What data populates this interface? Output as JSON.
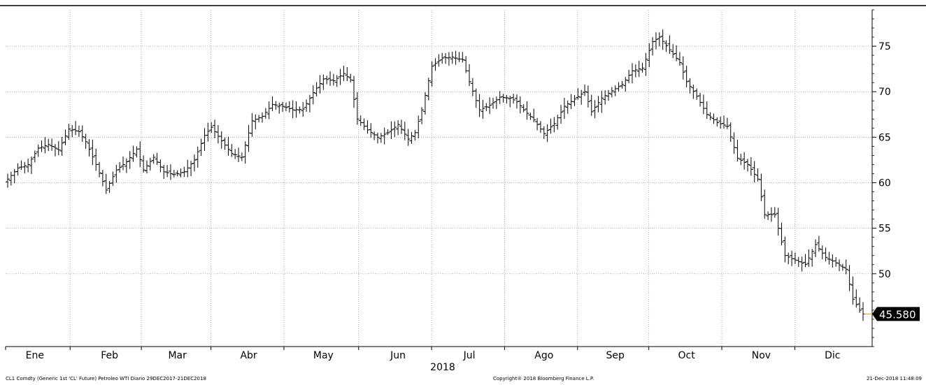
{
  "footer": {
    "left": "CL1 Comdty (Generic 1st 'CL' Future) Petroleo WTI  Diario 29DEC2017-21DEC2018",
    "center": "Copyright® 2018 Bloomberg Finance L.P.",
    "right": "21-Dec-2018 11:48:09"
  },
  "colors": {
    "bars": "#000000",
    "grid": "#9a9a9a",
    "last_price_line": "#e8a33c",
    "label_bg": "#000000",
    "label_text": "#ffffff"
  },
  "chart_data": {
    "type": "ohlc",
    "x_unit": "trading day index from 29DEC2017",
    "year_label": "2018",
    "ylim": [
      42,
      79
    ],
    "y_ticks": [
      50,
      55,
      60,
      65,
      70,
      75
    ],
    "grid": true,
    "month_labels": [
      {
        "label": "Ene",
        "index": 8
      },
      {
        "label": "Feb",
        "index": 30
      },
      {
        "label": "Mar",
        "index": 50
      },
      {
        "label": "Abr",
        "index": 71
      },
      {
        "label": "May",
        "index": 93
      },
      {
        "label": "Jun",
        "index": 115
      },
      {
        "label": "Jul",
        "index": 136
      },
      {
        "label": "Ago",
        "index": 158
      },
      {
        "label": "Sep",
        "index": 179
      },
      {
        "label": "Oct",
        "index": 200
      },
      {
        "label": "Nov",
        "index": 222
      },
      {
        "label": "Dic",
        "index": 243
      }
    ],
    "last_price": 45.58,
    "last_price_label": "45.580",
    "close_anchors": [
      [
        0,
        60.4
      ],
      [
        3,
        61.6
      ],
      [
        6,
        62.0
      ],
      [
        9,
        63.8
      ],
      [
        12,
        64.2
      ],
      [
        15,
        63.6
      ],
      [
        18,
        65.9
      ],
      [
        21,
        65.6
      ],
      [
        23,
        64.5
      ],
      [
        26,
        62.0
      ],
      [
        29,
        59.2
      ],
      [
        32,
        61.4
      ],
      [
        35,
        62.3
      ],
      [
        38,
        63.7
      ],
      [
        40,
        61.4
      ],
      [
        43,
        62.8
      ],
      [
        46,
        61.2
      ],
      [
        49,
        60.9
      ],
      [
        52,
        61.2
      ],
      [
        55,
        62.5
      ],
      [
        58,
        65.2
      ],
      [
        60,
        66.1
      ],
      [
        63,
        64.6
      ],
      [
        66,
        63.2
      ],
      [
        69,
        62.8
      ],
      [
        72,
        66.8
      ],
      [
        75,
        67.3
      ],
      [
        78,
        68.6
      ],
      [
        81,
        68.4
      ],
      [
        84,
        68.0
      ],
      [
        87,
        68.1
      ],
      [
        90,
        69.9
      ],
      [
        93,
        71.4
      ],
      [
        96,
        71.2
      ],
      [
        99,
        72.0
      ],
      [
        101,
        71.3
      ],
      [
        103,
        67.0
      ],
      [
        106,
        65.8
      ],
      [
        109,
        65.0
      ],
      [
        112,
        65.5
      ],
      [
        115,
        66.4
      ],
      [
        118,
        64.8
      ],
      [
        120,
        65.5
      ],
      [
        122,
        68.0
      ],
      [
        125,
        72.8
      ],
      [
        128,
        73.7
      ],
      [
        131,
        73.8
      ],
      [
        134,
        73.5
      ],
      [
        136,
        71.1
      ],
      [
        139,
        68.0
      ],
      [
        142,
        68.5
      ],
      [
        145,
        69.4
      ],
      [
        148,
        69.3
      ],
      [
        150,
        68.9
      ],
      [
        152,
        68.0
      ],
      [
        155,
        66.9
      ],
      [
        158,
        65.4
      ],
      [
        161,
        66.5
      ],
      [
        164,
        68.4
      ],
      [
        167,
        69.2
      ],
      [
        170,
        70.0
      ],
      [
        172,
        67.8
      ],
      [
        175,
        69.3
      ],
      [
        178,
        70.1
      ],
      [
        181,
        70.8
      ],
      [
        184,
        72.3
      ],
      [
        187,
        72.6
      ],
      [
        190,
        75.5
      ],
      [
        192,
        76.0
      ],
      [
        195,
        74.6
      ],
      [
        198,
        73.2
      ],
      [
        200,
        71.1
      ],
      [
        203,
        69.5
      ],
      [
        206,
        67.5
      ],
      [
        209,
        66.6
      ],
      [
        212,
        66.2
      ],
      [
        215,
        62.7
      ],
      [
        218,
        62.0
      ],
      [
        221,
        60.4
      ],
      [
        223,
        56.5
      ],
      [
        226,
        56.5
      ],
      [
        229,
        52.0
      ],
      [
        232,
        51.5
      ],
      [
        235,
        51.0
      ],
      [
        238,
        53.2
      ],
      [
        241,
        51.8
      ],
      [
        244,
        51.2
      ],
      [
        247,
        50.5
      ],
      [
        249,
        47.2
      ],
      [
        251,
        46.0
      ],
      [
        252,
        45.58
      ]
    ]
  }
}
